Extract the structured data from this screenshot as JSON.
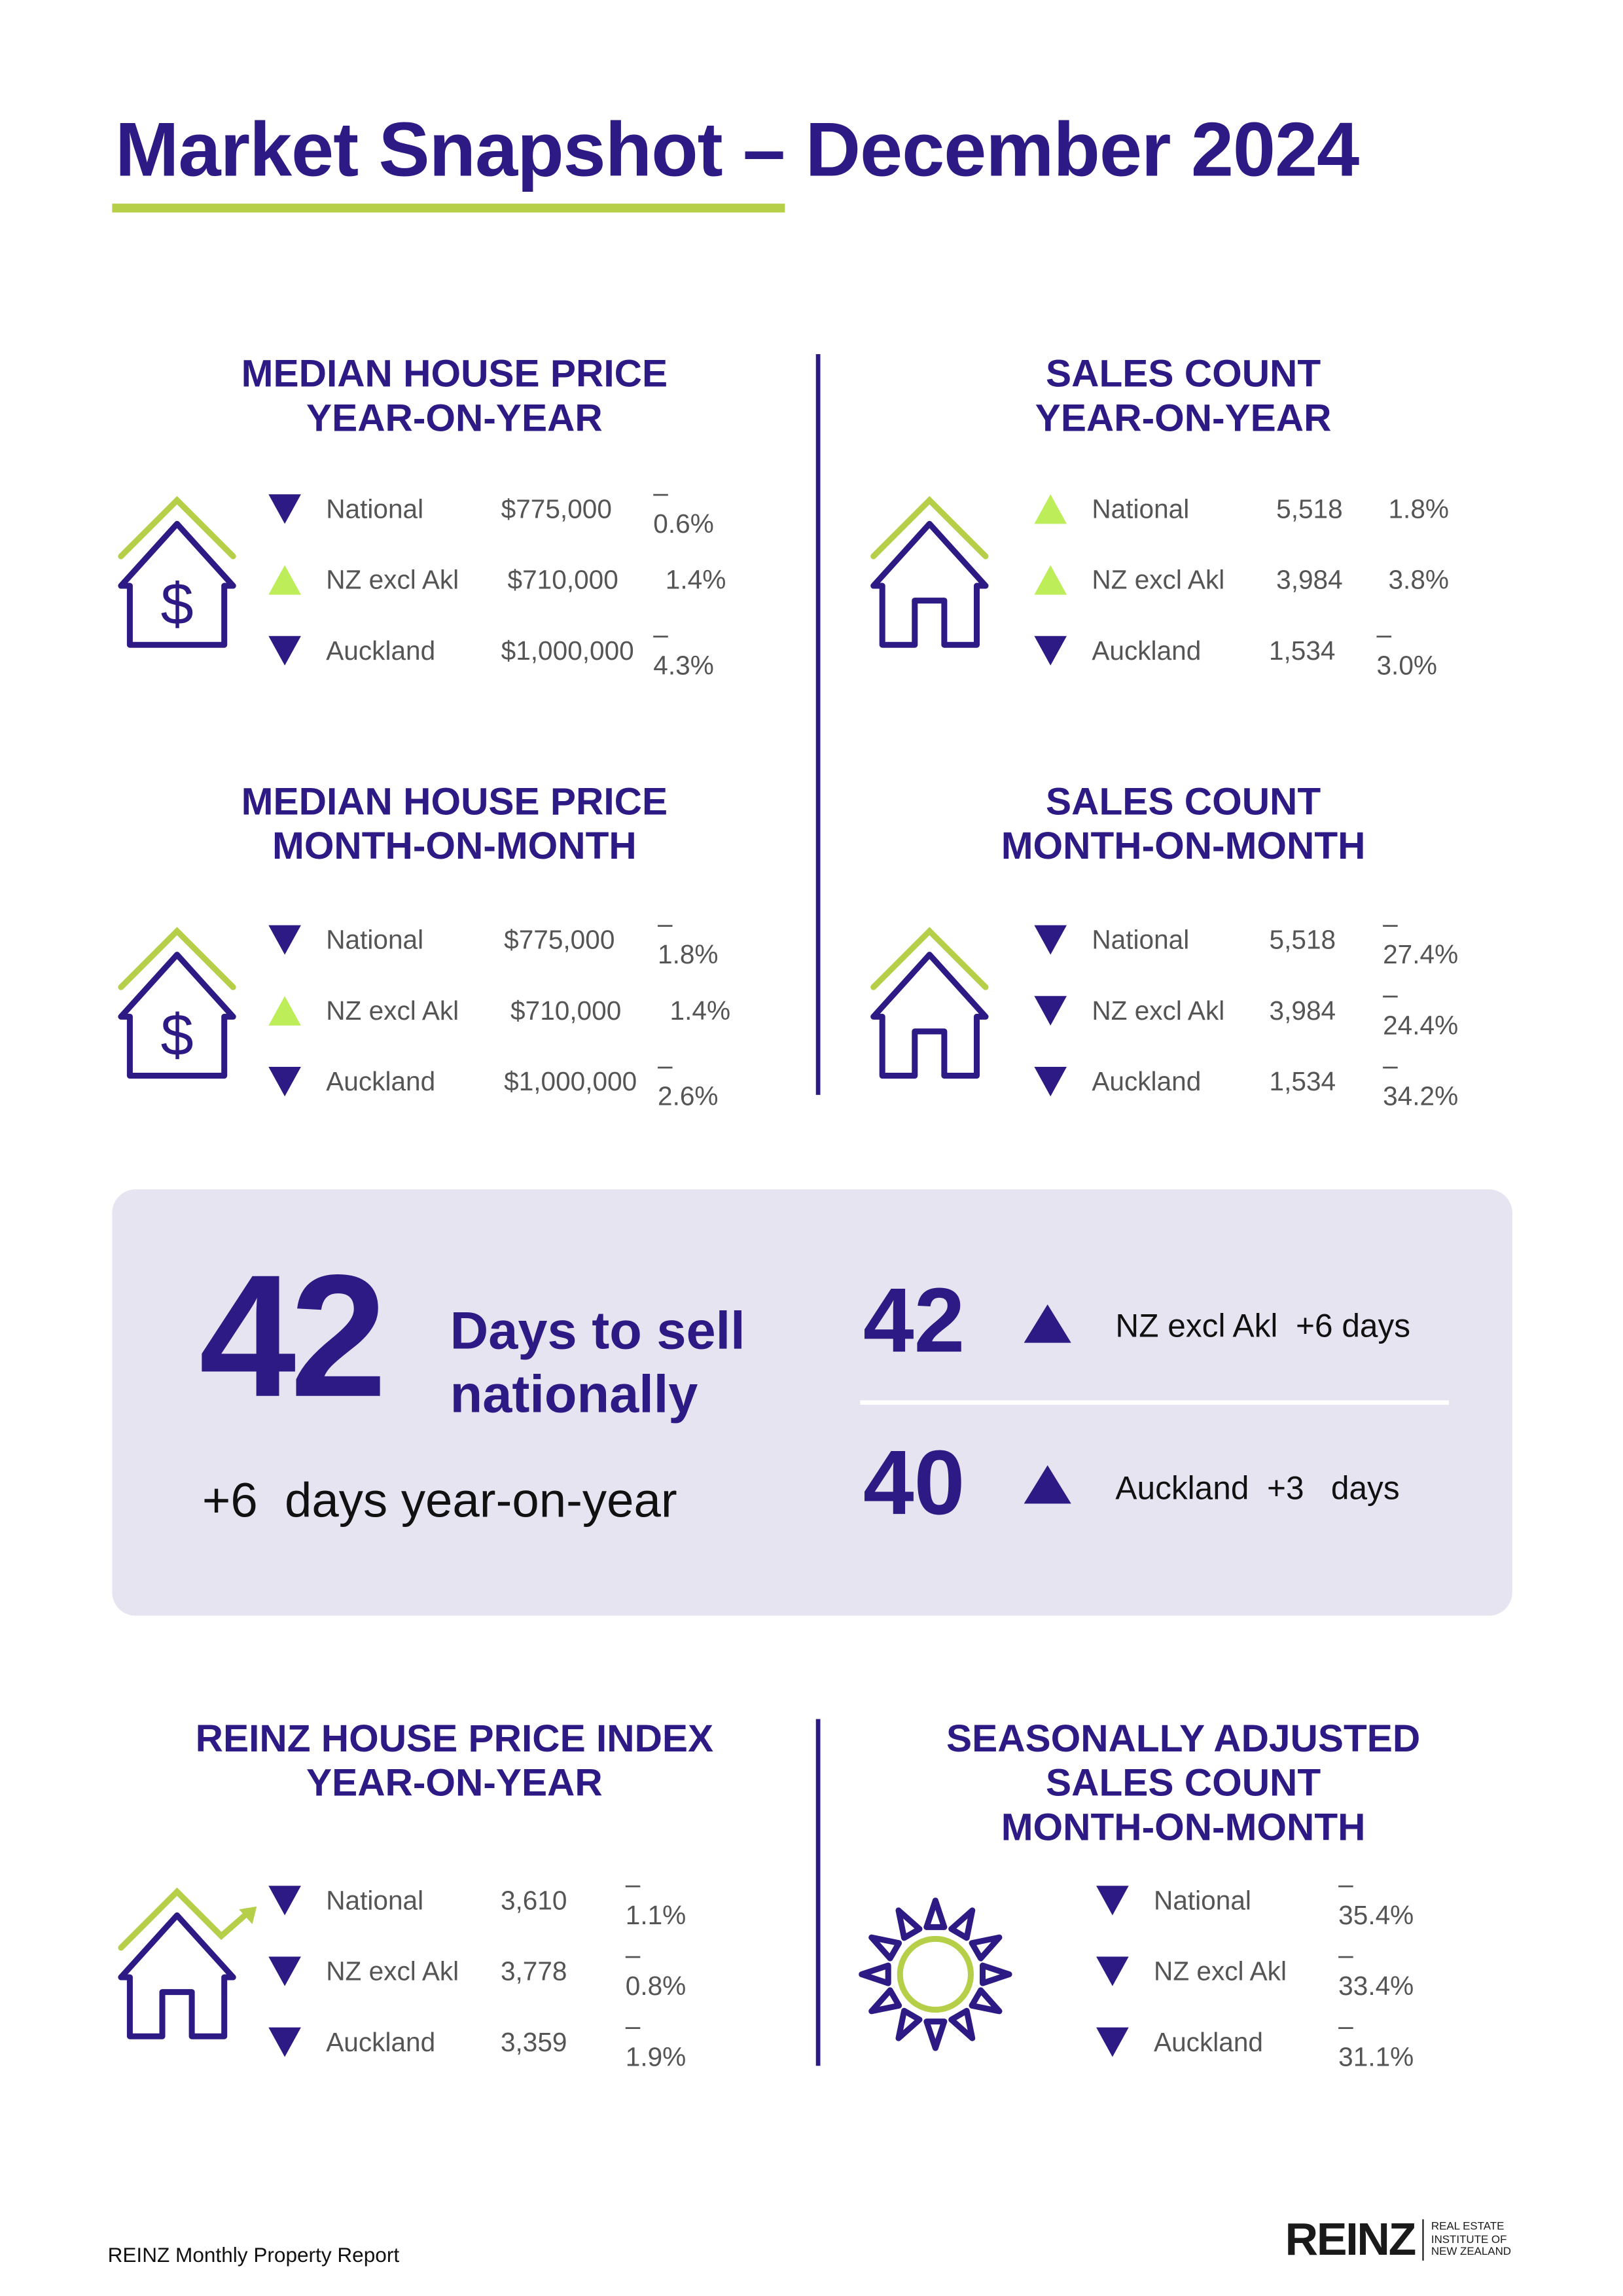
{
  "title": "Market Snapshot – December 2024",
  "colors": {
    "brand_purple": "#2d1a84",
    "accent_green": "#b5cf49",
    "up_green": "#bdee5a",
    "panel": "#e6e4f0"
  },
  "sections": {
    "median_yoy": {
      "heading": [
        "MEDIAN HOUSE PRICE",
        "YEAR-ON-YEAR"
      ],
      "icon": "house-dollar-icon",
      "rows": [
        {
          "dir": "down",
          "label": "National",
          "value": "$775,000",
          "change": "–0.6%"
        },
        {
          "dir": "up",
          "label": "NZ excl Akl",
          "value": "$710,000",
          "change": "1.4%"
        },
        {
          "dir": "down",
          "label": "Auckland",
          "value": "$1,000,000",
          "change": "–4.3%"
        }
      ]
    },
    "sales_yoy": {
      "heading": [
        "SALES COUNT",
        "YEAR-ON-YEAR"
      ],
      "icon": "house-icon",
      "rows": [
        {
          "dir": "up",
          "label": "National",
          "value": "5,518",
          "change": "1.8%"
        },
        {
          "dir": "up",
          "label": "NZ excl Akl",
          "value": "3,984",
          "change": "3.8%"
        },
        {
          "dir": "down",
          "label": "Auckland",
          "value": "1,534",
          "change": "–3.0%"
        }
      ]
    },
    "median_mom": {
      "heading": [
        "MEDIAN HOUSE PRICE",
        "MONTH-ON-MONTH"
      ],
      "icon": "house-dollar-icon",
      "rows": [
        {
          "dir": "down",
          "label": "National",
          "value": "$775,000",
          "change": "–1.8%"
        },
        {
          "dir": "up",
          "label": "NZ excl Akl",
          "value": "$710,000",
          "change": "1.4%"
        },
        {
          "dir": "down",
          "label": "Auckland",
          "value": "$1,000,000",
          "change": "–2.6%"
        }
      ]
    },
    "sales_mom": {
      "heading": [
        "SALES COUNT",
        "MONTH-ON-MONTH"
      ],
      "icon": "house-icon",
      "rows": [
        {
          "dir": "down",
          "label": "National",
          "value": "5,518",
          "change": "–27.4%"
        },
        {
          "dir": "down",
          "label": "NZ excl Akl",
          "value": "3,984",
          "change": "–24.4%"
        },
        {
          "dir": "down",
          "label": "Auckland",
          "value": "1,534",
          "change": "–34.2%"
        }
      ]
    },
    "hpi_yoy": {
      "heading": [
        "REINZ HOUSE PRICE INDEX",
        "YEAR-ON-YEAR"
      ],
      "icon": "house-growth-icon",
      "rows": [
        {
          "dir": "down",
          "label": "National",
          "value": "3,610",
          "change": "–1.1%"
        },
        {
          "dir": "down",
          "label": "NZ excl Akl",
          "value": "3,778",
          "change": "–0.8%"
        },
        {
          "dir": "down",
          "label": "Auckland",
          "value": "3,359",
          "change": "–1.9%"
        }
      ]
    },
    "seasonal_mom": {
      "heading": [
        "SEASONALLY ADJUSTED",
        "SALES COUNT",
        "MONTH-ON-MONTH"
      ],
      "icon": "sun-icon",
      "rows": [
        {
          "dir": "down",
          "label": "National",
          "change": "–35.4%"
        },
        {
          "dir": "down",
          "label": "NZ excl Akl",
          "change": "–33.4%"
        },
        {
          "dir": "down",
          "label": "Auckland",
          "change": "–31.1%"
        }
      ]
    }
  },
  "days_to_sell": {
    "national_days": "42",
    "national_label": [
      "Days to sell",
      "nationally"
    ],
    "national_change": "+6  days year-on-year",
    "regions": [
      {
        "days": "42",
        "dir": "up",
        "text": "NZ excl Akl  +6 days"
      },
      {
        "days": "40",
        "dir": "up",
        "text": "Auckland  +3   days"
      }
    ]
  },
  "footer": {
    "report": "REINZ Monthly Property Report",
    "logo": "REINZ",
    "logo_sub": [
      "REAL ESTATE",
      "INSTITUTE OF",
      "NEW ZEALAND"
    ]
  }
}
